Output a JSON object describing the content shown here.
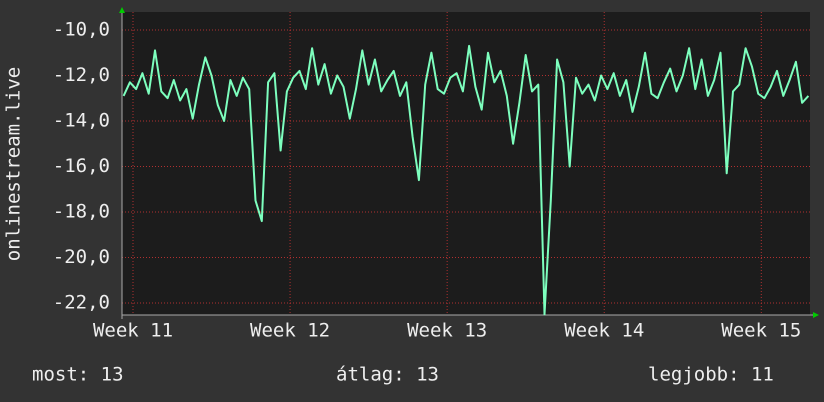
{
  "chart_data": {
    "type": "line",
    "y_label": "onlinestream.live",
    "x": [
      10.94,
      10.98,
      11.02,
      11.06,
      11.1,
      11.14,
      11.18,
      11.22,
      11.26,
      11.3,
      11.34,
      11.38,
      11.42,
      11.46,
      11.5,
      11.54,
      11.58,
      11.62,
      11.66,
      11.7,
      11.74,
      11.78,
      11.82,
      11.86,
      11.9,
      11.94,
      11.98,
      12.02,
      12.06,
      12.1,
      12.14,
      12.18,
      12.22,
      12.26,
      12.3,
      12.34,
      12.38,
      12.42,
      12.46,
      12.5,
      12.54,
      12.58,
      12.62,
      12.66,
      12.7,
      12.74,
      12.78,
      12.82,
      12.86,
      12.9,
      12.94,
      12.98,
      13.02,
      13.06,
      13.1,
      13.14,
      13.18,
      13.22,
      13.26,
      13.3,
      13.34,
      13.38,
      13.42,
      13.46,
      13.5,
      13.54,
      13.58,
      13.62,
      13.66,
      13.7,
      13.74,
      13.78,
      13.82,
      13.86,
      13.9,
      13.94,
      13.98,
      14.02,
      14.06,
      14.1,
      14.14,
      14.18,
      14.22,
      14.26,
      14.3,
      14.34,
      14.38,
      14.42,
      14.46,
      14.5,
      14.54,
      14.58,
      14.62,
      14.66,
      14.7,
      14.74,
      14.78,
      14.82,
      14.86,
      14.9,
      14.94,
      14.98,
      15.02,
      15.06,
      15.1,
      15.14,
      15.18,
      15.22,
      15.26,
      15.3
    ],
    "series": [
      {
        "color": "#7dffbe",
        "values": [
          -12.9,
          -12.3,
          -12.6,
          -11.9,
          -12.8,
          -10.9,
          -12.7,
          -13.0,
          -12.2,
          -13.1,
          -12.6,
          -13.9,
          -12.4,
          -11.2,
          -12.0,
          -13.3,
          -14.0,
          -12.2,
          -12.9,
          -12.1,
          -12.6,
          -17.5,
          -18.4,
          -12.3,
          -11.9,
          -15.3,
          -12.7,
          -12.1,
          -11.8,
          -12.6,
          -10.8,
          -12.4,
          -11.5,
          -12.8,
          -12.0,
          -12.5,
          -13.9,
          -12.6,
          -10.9,
          -12.4,
          -11.3,
          -12.7,
          -12.2,
          -11.8,
          -12.9,
          -12.3,
          -14.7,
          -16.6,
          -12.4,
          -11.0,
          -12.6,
          -12.8,
          -12.1,
          -11.9,
          -12.7,
          -10.7,
          -12.5,
          -13.5,
          -11.0,
          -12.3,
          -11.8,
          -12.9,
          -15.0,
          -13.2,
          -11.1,
          -12.7,
          -12.4,
          -22.5,
          -17.5,
          -11.3,
          -12.3,
          -16.0,
          -12.1,
          -12.8,
          -12.4,
          -13.1,
          -12.0,
          -12.6,
          -11.9,
          -12.9,
          -12.2,
          -13.6,
          -12.5,
          -11.0,
          -12.8,
          -13.0,
          -12.3,
          -11.7,
          -12.7,
          -12.0,
          -10.8,
          -12.6,
          -11.3,
          -12.9,
          -12.2,
          -11.0,
          -16.3,
          -12.7,
          -12.4,
          -10.8,
          -11.6,
          -12.8,
          -13.0,
          -12.5,
          -11.8,
          -12.9,
          -12.2,
          -11.4,
          -13.2,
          -12.9
        ]
      }
    ],
    "xlim": [
      10.93,
      15.31
    ],
    "xticks": [
      {
        "value": 11,
        "label": "Week 11"
      },
      {
        "value": 12,
        "label": "Week 12"
      },
      {
        "value": 13,
        "label": "Week 13"
      },
      {
        "value": 14,
        "label": "Week 14"
      },
      {
        "value": 15,
        "label": "Week 15"
      }
    ],
    "ylim": [
      -22.53,
      -9.21
    ],
    "yticks": [
      {
        "value": -10,
        "label": "-10,0"
      },
      {
        "value": -12,
        "label": "-12,0"
      },
      {
        "value": -14,
        "label": "-14,0"
      },
      {
        "value": -16,
        "label": "-16,0"
      },
      {
        "value": -18,
        "label": "-18,0"
      },
      {
        "value": -20,
        "label": "-20,0"
      },
      {
        "value": -22,
        "label": "-22,0"
      }
    ],
    "grid": true,
    "stats": [
      "most: 13",
      "átlag: 13",
      "legjobb: 11"
    ]
  }
}
